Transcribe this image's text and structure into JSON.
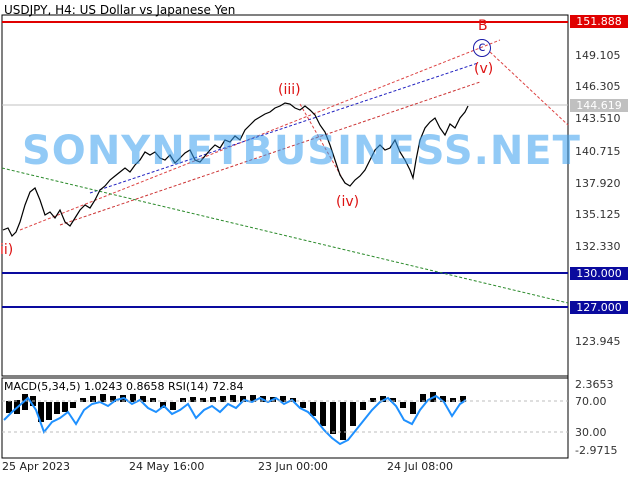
{
  "chart": {
    "title": "USDJPY, H4:  US Dollar vs Japanese Yen",
    "price_axis": [
      "151.888",
      "149.105",
      "146.305",
      "144.619",
      "143.510",
      "140.715",
      "137.920",
      "135.125",
      "132.330",
      "130.000",
      "127.000",
      "123.945"
    ],
    "date_axis": [
      "25 Apr 2023",
      "24 May 16:00",
      "23 Jun 00:00",
      "24 Jul 08:00"
    ],
    "horizontal_levels": [
      {
        "value": "151.888",
        "color": "#e00000"
      },
      {
        "value": "130.000",
        "color": "#0a0a9e"
      },
      {
        "value": "127.000",
        "color": "#0a0a9e"
      }
    ],
    "current_price": "144.619",
    "wave_labels": [
      "ii)",
      "(iii)",
      "(iv)",
      "(v)",
      "B",
      "c"
    ],
    "watermark": "SONYNETBUSINESS.NET"
  },
  "indicator": {
    "title": "MACD(5,34,5) 1.0243 0.8658 RSI(14) 72.84",
    "axis": [
      "2.3653",
      "70.00",
      "30.00",
      "-2.9715"
    ]
  }
}
